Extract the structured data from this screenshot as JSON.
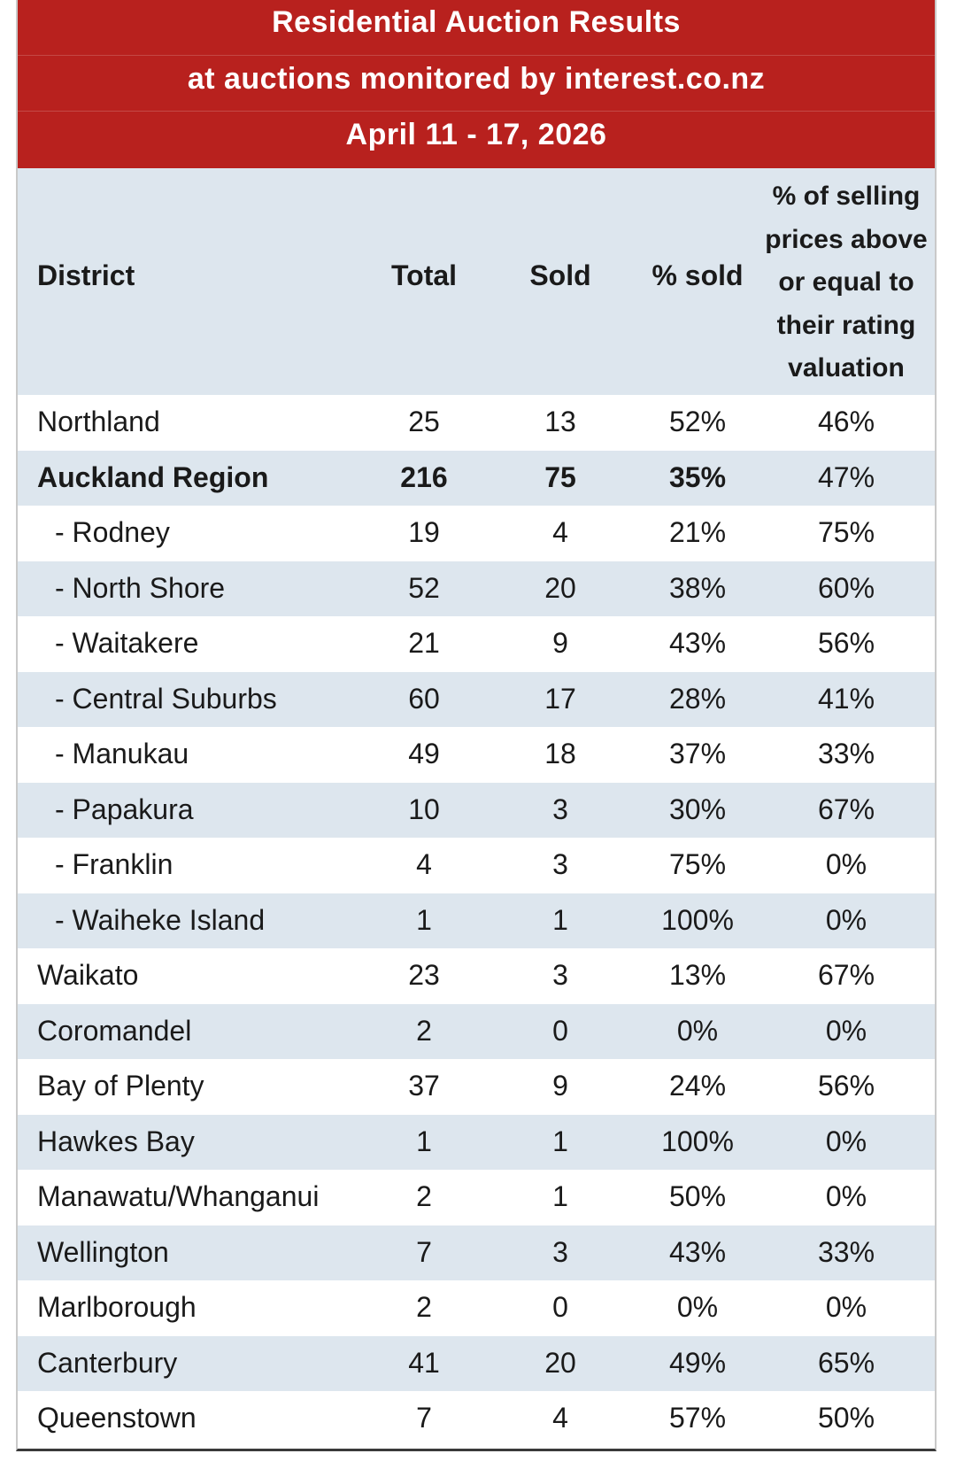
{
  "banner": {
    "title": "Residential Auction Results",
    "subtitle": "at auctions monitored by interest.co.nz",
    "date_range": "April 11 - 17, 2026",
    "color": "#b8211e"
  },
  "columns": {
    "district": "District",
    "total": "Total",
    "sold": "Sold",
    "pct_sold": "% sold",
    "pct_above_rv": "% of selling prices above or equal to their rating valuation"
  },
  "colors": {
    "header_bg": "#dde6ee",
    "alt_row_bg": "#dde6ee"
  },
  "rows": [
    {
      "district": "Northland",
      "total": "25",
      "sold": "13",
      "pct_sold": "52%",
      "pct_above_rv": "46%"
    },
    {
      "district": "Auckland Region",
      "total": "216",
      "sold": "75",
      "pct_sold": "35%",
      "pct_above_rv": "47%"
    },
    {
      "district": "- Rodney",
      "total": "19",
      "sold": "4",
      "pct_sold": "21%",
      "pct_above_rv": "75%"
    },
    {
      "district": "- North Shore",
      "total": "52",
      "sold": "20",
      "pct_sold": "38%",
      "pct_above_rv": "60%"
    },
    {
      "district": "- Waitakere",
      "total": "21",
      "sold": "9",
      "pct_sold": "43%",
      "pct_above_rv": "56%"
    },
    {
      "district": "- Central Suburbs",
      "total": "60",
      "sold": "17",
      "pct_sold": "28%",
      "pct_above_rv": "41%"
    },
    {
      "district": "- Manukau",
      "total": "49",
      "sold": "18",
      "pct_sold": "37%",
      "pct_above_rv": "33%"
    },
    {
      "district": "- Papakura",
      "total": "10",
      "sold": "3",
      "pct_sold": "30%",
      "pct_above_rv": "67%"
    },
    {
      "district": "- Franklin",
      "total": "4",
      "sold": "3",
      "pct_sold": "75%",
      "pct_above_rv": "0%"
    },
    {
      "district": "- Waiheke Island",
      "total": "1",
      "sold": "1",
      "pct_sold": "100%",
      "pct_above_rv": "0%"
    },
    {
      "district": "Waikato",
      "total": "23",
      "sold": "3",
      "pct_sold": "13%",
      "pct_above_rv": "67%"
    },
    {
      "district": "Coromandel",
      "total": "2",
      "sold": "0",
      "pct_sold": "0%",
      "pct_above_rv": "0%"
    },
    {
      "district": "Bay of Plenty",
      "total": "37",
      "sold": "9",
      "pct_sold": "24%",
      "pct_above_rv": "56%"
    },
    {
      "district": "Hawkes Bay",
      "total": "1",
      "sold": "1",
      "pct_sold": "100%",
      "pct_above_rv": "0%"
    },
    {
      "district": "Manawatu/Whanganui",
      "total": "2",
      "sold": "1",
      "pct_sold": "50%",
      "pct_above_rv": "0%"
    },
    {
      "district": "Wellington",
      "total": "7",
      "sold": "3",
      "pct_sold": "43%",
      "pct_above_rv": "33%"
    },
    {
      "district": "Marlborough",
      "total": "2",
      "sold": "0",
      "pct_sold": "0%",
      "pct_above_rv": "0%"
    },
    {
      "district": "Canterbury",
      "total": "41",
      "sold": "20",
      "pct_sold": "49%",
      "pct_above_rv": "65%"
    },
    {
      "district": "Queenstown",
      "total": "7",
      "sold": "4",
      "pct_sold": "57%",
      "pct_above_rv": "50%"
    }
  ]
}
